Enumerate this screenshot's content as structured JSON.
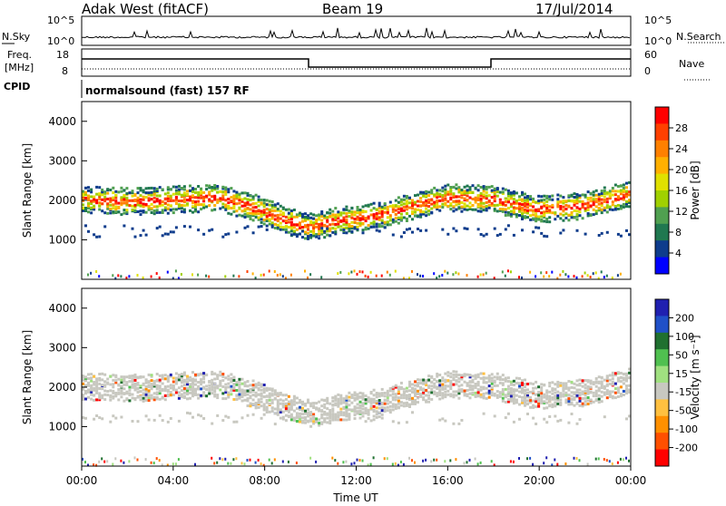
{
  "header": {
    "station": "Adak West (fitACF)",
    "beam": "Beam 19",
    "date": "17/Jul/2014"
  },
  "noise_panel": {
    "left_label": "N.Sky",
    "right_label": "N.Search",
    "ticks_left": [
      "10^5",
      "10^0"
    ],
    "ticks_right": [
      "10^5",
      "10^0"
    ]
  },
  "freq_panel": {
    "left_label_1": "Freq.",
    "left_label_2": "[MHz]",
    "right_label": "Nave",
    "ticks_left": [
      "18",
      "8"
    ],
    "ticks_right": [
      "60",
      "0"
    ]
  },
  "cpid": {
    "label": "CPID",
    "text": "normalsound (fast) 157 RF"
  },
  "time_axis": {
    "label": "Time UT",
    "ticks": [
      "00:00",
      "04:00",
      "08:00",
      "12:00",
      "16:00",
      "20:00",
      "00:00"
    ]
  },
  "power_colorbar": {
    "label": "Power [dB]",
    "ticks": [
      "28",
      "24",
      "20",
      "16",
      "12",
      "8",
      "4"
    ],
    "colors": [
      "#ff0000",
      "#ff4000",
      "#ff8000",
      "#ffb000",
      "#e0e000",
      "#a0d000",
      "#50a050",
      "#207850",
      "#0e3c8c",
      "#0000ff"
    ]
  },
  "velocity_colorbar": {
    "label": "Velocity [m s⁻¹]",
    "ticks": [
      "200",
      "100",
      "50",
      "15",
      "-15",
      "-50",
      "-100",
      "-200"
    ],
    "colors": [
      "#2020b0",
      "#2050c8",
      "#207030",
      "#50c050",
      "#a0e080",
      "#c8c8c0",
      "#ffc040",
      "#ff9000",
      "#ff5000",
      "#ff0000"
    ]
  },
  "chart_data": [
    {
      "type": "heatmap",
      "title": "Power",
      "ylabel": "Slant Range [km]",
      "xlabel": "Time UT",
      "ylim": [
        0,
        4500
      ],
      "yticks": [
        "1000",
        "2000",
        "3000",
        "4000"
      ],
      "xlim_hours": [
        0,
        24
      ],
      "echo_band": [
        {
          "x": 0,
          "y": 2050
        },
        {
          "x": 2,
          "y": 2000
        },
        {
          "x": 4,
          "y": 2050
        },
        {
          "x": 6,
          "y": 2100
        },
        {
          "x": 7.5,
          "y": 1850
        },
        {
          "x": 9,
          "y": 1500
        },
        {
          "x": 10,
          "y": 1350
        },
        {
          "x": 11,
          "y": 1500
        },
        {
          "x": 13,
          "y": 1650
        },
        {
          "x": 14.5,
          "y": 1900
        },
        {
          "x": 16,
          "y": 2100
        },
        {
          "x": 18,
          "y": 2050
        },
        {
          "x": 20,
          "y": 1800
        },
        {
          "x": 22,
          "y": 1900
        },
        {
          "x": 24,
          "y": 2200
        }
      ]
    },
    {
      "type": "heatmap",
      "title": "Velocity",
      "ylabel": "Slant Range [km]",
      "xlabel": "Time UT",
      "ylim": [
        0,
        4500
      ],
      "yticks": [
        "1000",
        "2000",
        "3000",
        "4000"
      ],
      "xlim_hours": [
        0,
        24
      ]
    }
  ]
}
